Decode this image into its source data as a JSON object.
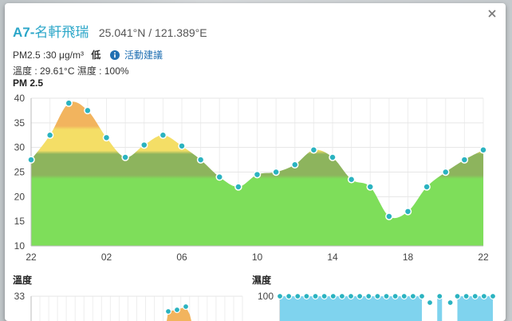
{
  "station": {
    "id": "A7-",
    "name": "名軒飛瑞",
    "coords": "25.041°N / 121.389°E"
  },
  "readings": {
    "pm25_text": "PM2.5 :30 μg/m³",
    "level": "低",
    "advice_link": "活動建議",
    "temperature_text": "溫度 : 29.61°C",
    "humidity_text": "濕度 : 100%"
  },
  "colors": {
    "accent": "#2aa6c8",
    "link": "#1f6fb2",
    "point": "#2bb3c0"
  },
  "icons": {
    "close": "close-icon",
    "info": "info-icon"
  },
  "chart_data": [
    {
      "type": "area",
      "title": "PM 2.5",
      "x": [
        "22",
        "23",
        "00",
        "01",
        "02",
        "03",
        "04",
        "05",
        "06",
        "07",
        "08",
        "09",
        "10",
        "11",
        "12",
        "13",
        "14",
        "15",
        "16",
        "17",
        "18",
        "19",
        "20",
        "21",
        "22"
      ],
      "x_tick_labels": [
        "22",
        "02",
        "06",
        "10",
        "14",
        "18",
        "22"
      ],
      "y": [
        27.5,
        32.5,
        39,
        37.5,
        32,
        28,
        30.5,
        32.5,
        30.3,
        27.5,
        24,
        22,
        24.5,
        25,
        26.5,
        29.5,
        28,
        23.5,
        22,
        16,
        17,
        22,
        25,
        27.5,
        29.5
      ],
      "ylim": [
        10,
        40
      ],
      "y_ticks": [
        10,
        15,
        20,
        25,
        30,
        35,
        40
      ],
      "bands": [
        {
          "from": 10,
          "to": 24,
          "color": "#7ede5a"
        },
        {
          "from": 24,
          "to": 29,
          "color": "#8db45d"
        },
        {
          "from": 29,
          "to": 34,
          "color": "#f4de66"
        },
        {
          "from": 34,
          "to": 40,
          "color": "#f2b45e"
        }
      ],
      "grid": true
    },
    {
      "type": "area",
      "title": "溫度",
      "y_ticks_visible": [
        "33"
      ],
      "note": ""
    },
    {
      "type": "area",
      "title": "濕度",
      "y_ticks_visible": [
        "100"
      ]
    }
  ]
}
